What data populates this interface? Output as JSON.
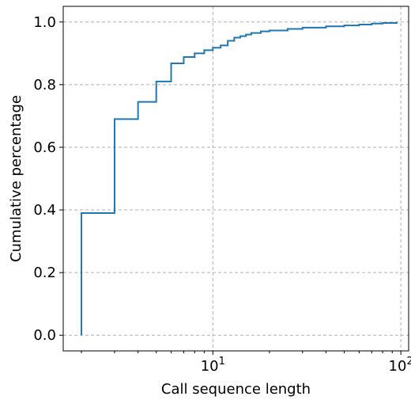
{
  "chart_data": {
    "type": "line",
    "xlabel": "Call sequence length",
    "ylabel": "Cumulative percentage",
    "xscale": "log",
    "xlim": [
      1.6,
      110
    ],
    "ylim": [
      -0.05,
      1.05
    ],
    "grid": true,
    "x_ticks": [
      {
        "value": 10,
        "base": "10",
        "exp": "1"
      },
      {
        "value": 100,
        "base": "10",
        "exp": "2"
      }
    ],
    "y_ticks": [
      {
        "value": 0.0,
        "label": "0.0"
      },
      {
        "value": 0.2,
        "label": "0.2"
      },
      {
        "value": 0.4,
        "label": "0.4"
      },
      {
        "value": 0.6,
        "label": "0.6"
      },
      {
        "value": 0.8,
        "label": "0.8"
      },
      {
        "value": 1.0,
        "label": "1.0"
      }
    ],
    "series": [
      {
        "color": "#1f77b4",
        "step": "post",
        "x": [
          2,
          2,
          3,
          4,
          5,
          6,
          7,
          8,
          9,
          10,
          11,
          12,
          13,
          14,
          15,
          16,
          18,
          20,
          25,
          30,
          40,
          50,
          60,
          70,
          80,
          95
        ],
        "y": [
          0.0,
          0.39,
          0.69,
          0.745,
          0.81,
          0.868,
          0.888,
          0.9,
          0.91,
          0.918,
          0.925,
          0.94,
          0.95,
          0.955,
          0.96,
          0.965,
          0.97,
          0.973,
          0.978,
          0.982,
          0.986,
          0.989,
          0.992,
          0.995,
          0.997,
          1.0
        ]
      }
    ]
  }
}
